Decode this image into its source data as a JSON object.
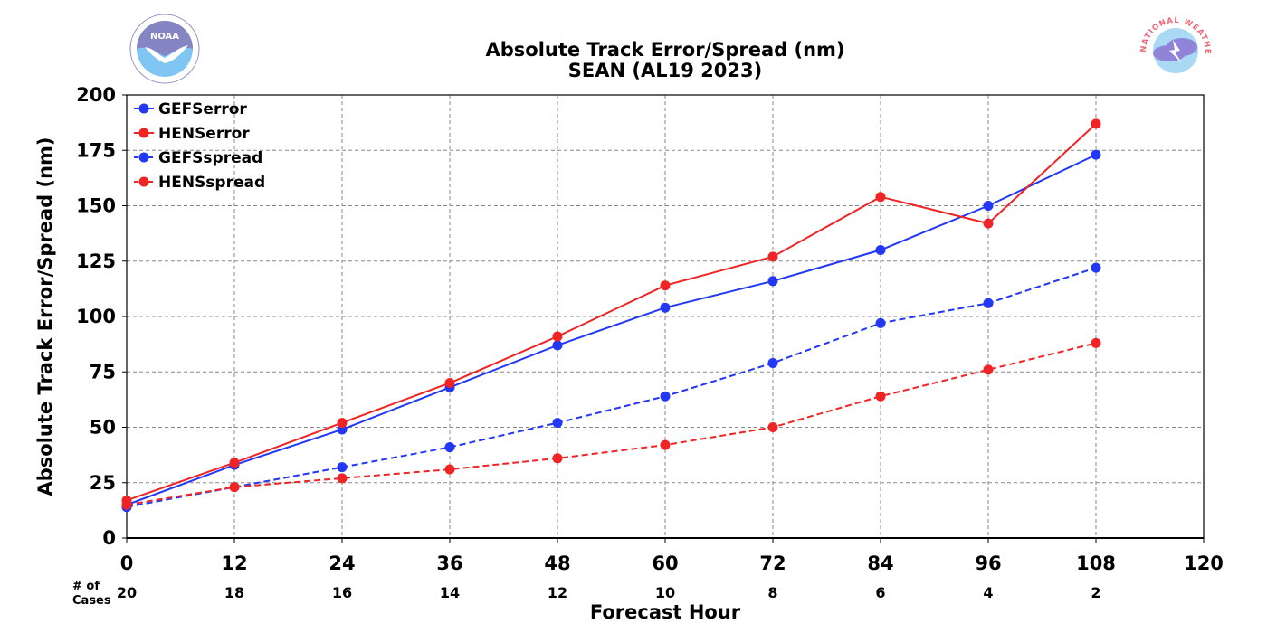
{
  "logos": {
    "left": "noaa-logo-icon",
    "right": "nws-logo-icon"
  },
  "logo_text": {
    "noaa": "NOAA",
    "nws": "NATIONAL WEATHER SERVICE"
  },
  "colors": {
    "gefs": "#2238f5",
    "hens": "#f02424",
    "grid": "#888888"
  },
  "chart_data": {
    "type": "line",
    "title": "Absolute Track Error/Spread (nm)",
    "subtitle": "SEAN (AL19 2023)",
    "xlabel": "Forecast Hour",
    "ylabel": "Absolute Track Error/Spread (nm)",
    "xlim": [
      0,
      120
    ],
    "ylim": [
      0,
      200
    ],
    "xticks": [
      0,
      12,
      24,
      36,
      48,
      60,
      72,
      84,
      96,
      108,
      120
    ],
    "yticks": [
      0,
      25,
      50,
      75,
      100,
      125,
      150,
      175,
      200
    ],
    "grid": true,
    "legend_position": "top-left",
    "cases_label_line1": "# of",
    "cases_label_line2": "Cases",
    "cases_x": [
      0,
      12,
      24,
      36,
      48,
      60,
      72,
      84,
      96,
      108
    ],
    "cases": [
      20,
      18,
      16,
      14,
      12,
      10,
      8,
      6,
      4,
      2
    ],
    "x": [
      0,
      12,
      24,
      36,
      48,
      60,
      72,
      84,
      96,
      108
    ],
    "series": [
      {
        "name": "GEFSerror",
        "color": "#2238f5",
        "dashed": false,
        "values": [
          15,
          33,
          49,
          68,
          87,
          104,
          116,
          130,
          150,
          173
        ]
      },
      {
        "name": "HENSerror",
        "color": "#f02424",
        "dashed": false,
        "values": [
          17,
          34,
          52,
          70,
          91,
          114,
          127,
          154,
          142,
          187
        ]
      },
      {
        "name": "GEFSspread",
        "color": "#2238f5",
        "dashed": true,
        "values": [
          14,
          23,
          32,
          41,
          52,
          64,
          79,
          97,
          106,
          122
        ]
      },
      {
        "name": "HENSspread",
        "color": "#f02424",
        "dashed": true,
        "values": [
          15,
          23,
          27,
          31,
          36,
          42,
          50,
          64,
          76,
          88
        ]
      }
    ]
  }
}
